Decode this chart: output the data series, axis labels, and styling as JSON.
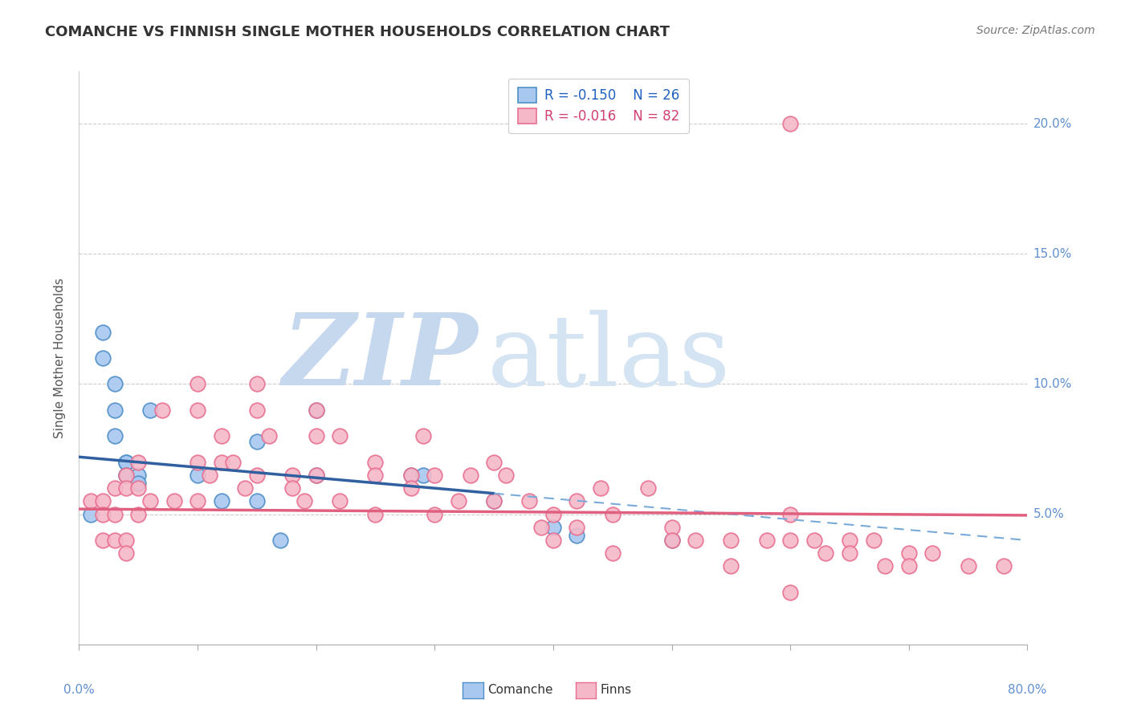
{
  "title": "COMANCHE VS FINNISH SINGLE MOTHER HOUSEHOLDS CORRELATION CHART",
  "source": "Source: ZipAtlas.com",
  "ylabel": "Single Mother Households",
  "xlim": [
    0.0,
    0.8
  ],
  "ylim": [
    0.0,
    0.22
  ],
  "xticks": [
    0.0,
    0.1,
    0.2,
    0.3,
    0.4,
    0.5,
    0.6,
    0.7,
    0.8
  ],
  "xtick_labels": [
    "",
    "",
    "",
    "",
    "",
    "",
    "",
    "",
    ""
  ],
  "yticks": [
    0.05,
    0.1,
    0.15,
    0.2
  ],
  "ytick_labels": [
    "5.0%",
    "10.0%",
    "15.0%",
    "20.0%"
  ],
  "comanche_R": -0.15,
  "comanche_N": 26,
  "finns_R": -0.016,
  "finns_N": 82,
  "comanche_color": "#a8c8f0",
  "comanche_edge_color": "#5090c8",
  "finns_color": "#f5b8c8",
  "finns_edge_color": "#e87090",
  "comanche_line_color": "#3060a0",
  "finns_line_color": "#e06080",
  "regression_dash_color": "#7aaad8",
  "watermark_color": "#d8e4f0",
  "legend_R_color_comanche": "#2060c0",
  "legend_R_color_finns": "#d04070",
  "axis_label_color": "#6090d0",
  "comanche_x": [
    0.01,
    0.02,
    0.02,
    0.03,
    0.03,
    0.03,
    0.04,
    0.04,
    0.04,
    0.04,
    0.05,
    0.05,
    0.06,
    0.1,
    0.12,
    0.15,
    0.15,
    0.17,
    0.2,
    0.2,
    0.28,
    0.29,
    0.35,
    0.4,
    0.42,
    0.5
  ],
  "comanche_y": [
    0.05,
    0.12,
    0.11,
    0.1,
    0.09,
    0.08,
    0.07,
    0.07,
    0.065,
    0.065,
    0.065,
    0.062,
    0.09,
    0.065,
    0.055,
    0.078,
    0.055,
    0.04,
    0.09,
    0.065,
    0.065,
    0.065,
    0.055,
    0.045,
    0.042,
    0.04
  ],
  "finns_x": [
    0.01,
    0.02,
    0.02,
    0.02,
    0.03,
    0.03,
    0.03,
    0.04,
    0.04,
    0.04,
    0.04,
    0.05,
    0.05,
    0.05,
    0.06,
    0.07,
    0.08,
    0.1,
    0.1,
    0.1,
    0.1,
    0.11,
    0.12,
    0.12,
    0.13,
    0.14,
    0.15,
    0.15,
    0.15,
    0.16,
    0.18,
    0.18,
    0.19,
    0.2,
    0.2,
    0.2,
    0.22,
    0.22,
    0.25,
    0.25,
    0.25,
    0.28,
    0.28,
    0.29,
    0.3,
    0.3,
    0.32,
    0.33,
    0.35,
    0.35,
    0.36,
    0.38,
    0.39,
    0.4,
    0.4,
    0.42,
    0.42,
    0.44,
    0.45,
    0.45,
    0.48,
    0.5,
    0.5,
    0.52,
    0.55,
    0.55,
    0.58,
    0.6,
    0.6,
    0.62,
    0.63,
    0.65,
    0.65,
    0.67,
    0.68,
    0.7,
    0.7,
    0.72,
    0.75,
    0.78,
    0.6
  ],
  "finns_y": [
    0.055,
    0.055,
    0.05,
    0.04,
    0.06,
    0.05,
    0.04,
    0.065,
    0.06,
    0.04,
    0.035,
    0.07,
    0.06,
    0.05,
    0.055,
    0.09,
    0.055,
    0.1,
    0.09,
    0.07,
    0.055,
    0.065,
    0.08,
    0.07,
    0.07,
    0.06,
    0.1,
    0.09,
    0.065,
    0.08,
    0.065,
    0.06,
    0.055,
    0.09,
    0.08,
    0.065,
    0.08,
    0.055,
    0.07,
    0.065,
    0.05,
    0.065,
    0.06,
    0.08,
    0.05,
    0.065,
    0.055,
    0.065,
    0.07,
    0.055,
    0.065,
    0.055,
    0.045,
    0.05,
    0.04,
    0.055,
    0.045,
    0.06,
    0.05,
    0.035,
    0.06,
    0.045,
    0.04,
    0.04,
    0.04,
    0.03,
    0.04,
    0.05,
    0.04,
    0.04,
    0.035,
    0.04,
    0.035,
    0.04,
    0.03,
    0.035,
    0.03,
    0.035,
    0.03,
    0.03,
    0.02
  ],
  "finns_outlier_x": [
    0.6
  ],
  "finns_outlier_y": [
    0.2
  ]
}
